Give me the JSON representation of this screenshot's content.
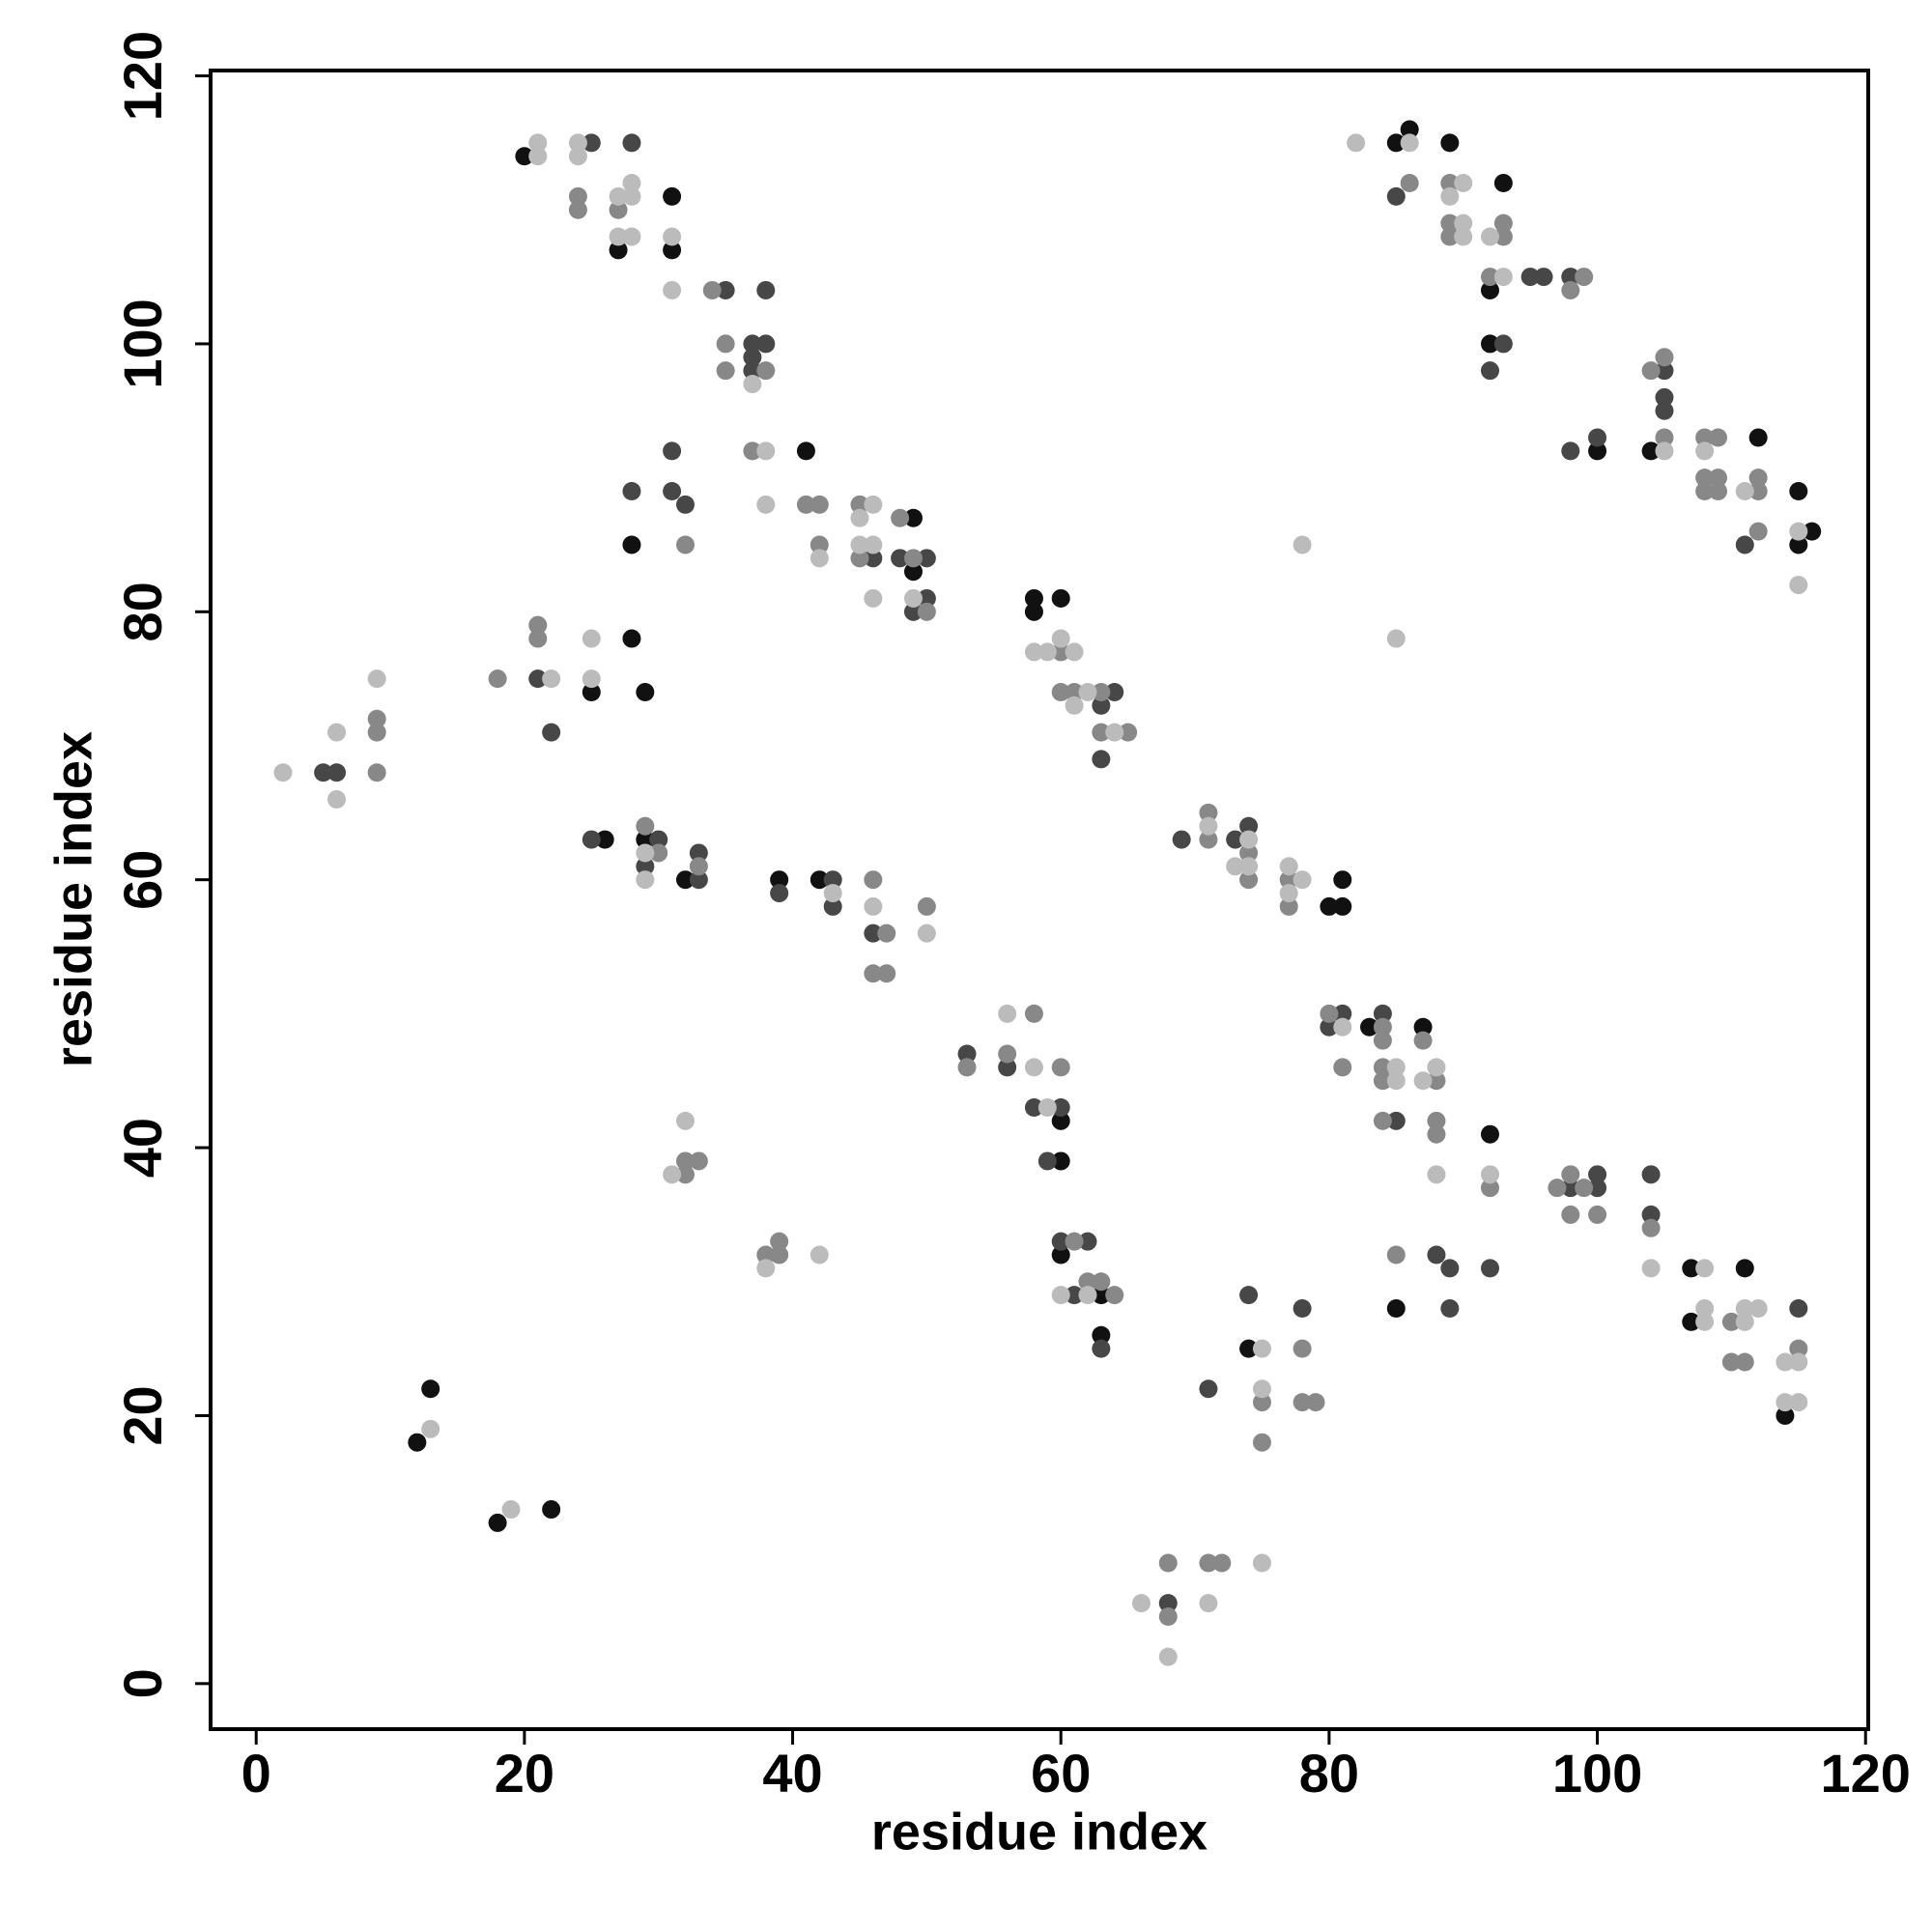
{
  "chart_data": {
    "type": "scatter",
    "xlabel": "residue index",
    "ylabel": "residue index",
    "xlim": [
      -3.4,
      120.2
    ],
    "ylim": [
      -3.4,
      120.4
    ],
    "xticks": [
      0,
      20,
      40,
      60,
      80,
      100,
      120
    ],
    "yticks": [
      0,
      20,
      40,
      60,
      80,
      100,
      120
    ],
    "grid": false,
    "series": [
      {
        "color": "#111111",
        "x": [
          20,
          31,
          27,
          31,
          41,
          28,
          49,
          49,
          28,
          29,
          25,
          26,
          29,
          32,
          39,
          42,
          12,
          13,
          18,
          22,
          60,
          60,
          58,
          58,
          60,
          60,
          63,
          63,
          74,
          80,
          81,
          81,
          83,
          87,
          85,
          92,
          107,
          107,
          111,
          114,
          85,
          86,
          89,
          93,
          92,
          92,
          100,
          104,
          112,
          115,
          116,
          115
        ],
        "y": [
          114,
          111,
          107,
          107,
          92,
          85,
          87,
          83,
          78,
          74,
          74,
          63,
          63,
          60,
          60,
          60,
          18,
          22,
          12,
          13,
          42,
          39,
          81,
          80,
          81,
          32,
          29,
          26,
          25,
          58,
          60,
          58,
          49,
          49,
          28,
          41,
          31,
          27,
          31,
          20,
          115,
          116,
          115,
          112,
          104,
          100,
          92,
          92,
          93,
          89,
          86,
          85
        ]
      },
      {
        "color": "#474747",
        "x": [
          25,
          28,
          35,
          38,
          37,
          38,
          37,
          37,
          48,
          46,
          50,
          50,
          49,
          31,
          28,
          31,
          32,
          21,
          22,
          5,
          6,
          25,
          30,
          29,
          33,
          33,
          39,
          43,
          43,
          46,
          53,
          56,
          58,
          60,
          59,
          64,
          63,
          63,
          60,
          62,
          61,
          63,
          68,
          71,
          74,
          78,
          69,
          73,
          74,
          81,
          80,
          84,
          85,
          88,
          89,
          89,
          92,
          98,
          100,
          100,
          104,
          104,
          115,
          85,
          95,
          96,
          98,
          93,
          92,
          98,
          100,
          105,
          105,
          105,
          111
        ],
        "y": [
          115,
          115,
          104,
          104,
          100,
          100,
          99,
          98,
          84,
          84,
          84,
          81,
          80,
          92,
          89,
          89,
          88,
          75,
          71,
          68,
          68,
          63,
          63,
          61,
          62,
          60,
          59,
          60,
          58,
          56,
          47,
          46,
          43,
          43,
          39,
          74,
          73,
          69,
          33,
          33,
          29,
          25,
          6,
          22,
          29,
          28,
          63,
          63,
          64,
          50,
          49,
          50,
          42,
          32,
          31,
          28,
          31,
          37,
          38,
          37,
          38,
          35,
          28,
          111,
          105,
          105,
          105,
          100,
          98,
          92,
          93,
          98,
          96,
          95,
          85
        ]
      },
      {
        "color": "#888888",
        "x": [
          24,
          24,
          27,
          34,
          35,
          35,
          38,
          37,
          41,
          42,
          42,
          45,
          48,
          45,
          49,
          50,
          32,
          21,
          21,
          18,
          9,
          9,
          9,
          29,
          30,
          33,
          46,
          47,
          46,
          47,
          50,
          32,
          33,
          32,
          38,
          39,
          39,
          53,
          56,
          58,
          60,
          60,
          60,
          61,
          63,
          63,
          65,
          61,
          62,
          63,
          64,
          68,
          68,
          71,
          72,
          75,
          75,
          78,
          78,
          79,
          71,
          71,
          74,
          74,
          77,
          77,
          80,
          81,
          84,
          84,
          87,
          84,
          84,
          88,
          84,
          88,
          88,
          85,
          92,
          97,
          98,
          99,
          98,
          100,
          104,
          110,
          110,
          111,
          115,
          86,
          89,
          89,
          89,
          93,
          93,
          92,
          99,
          98,
          105,
          104,
          105,
          108,
          109,
          108,
          109,
          108,
          109,
          112,
          112,
          112
        ],
        "y": [
          111,
          110,
          110,
          104,
          100,
          98,
          98,
          92,
          88,
          88,
          85,
          88,
          87,
          84,
          84,
          80,
          85,
          79,
          78,
          75,
          72,
          71,
          68,
          64,
          62,
          61,
          60,
          56,
          53,
          53,
          58,
          39,
          39,
          38,
          32,
          33,
          32,
          46,
          47,
          50,
          46,
          77,
          74,
          74,
          74,
          71,
          71,
          33,
          30,
          30,
          29,
          9,
          5,
          9,
          9,
          21,
          18,
          25,
          21,
          21,
          65,
          63,
          62,
          60,
          60,
          58,
          50,
          46,
          49,
          48,
          48,
          46,
          45,
          45,
          42,
          42,
          41,
          32,
          37,
          37,
          38,
          37,
          35,
          35,
          34,
          27,
          24,
          24,
          25,
          112,
          112,
          109,
          108,
          109,
          108,
          105,
          105,
          104,
          93,
          98,
          99,
          93,
          93,
          90,
          90,
          89,
          89,
          90,
          89,
          86
        ]
      },
      {
        "color": "#bbbbbb",
        "x": [
          21,
          21,
          24,
          24,
          27,
          28,
          28,
          27,
          28,
          31,
          31,
          37,
          38,
          38,
          42,
          46,
          45,
          45,
          46,
          46,
          49,
          25,
          22,
          25,
          9,
          6,
          6,
          2,
          29,
          29,
          43,
          46,
          50,
          32,
          31,
          38,
          42,
          13,
          19,
          56,
          58,
          59,
          58,
          59,
          60,
          61,
          61,
          62,
          64,
          60,
          62,
          66,
          68,
          71,
          75,
          75,
          75,
          71,
          74,
          73,
          74,
          77,
          78,
          77,
          78,
          81,
          85,
          85,
          87,
          88,
          88,
          92,
          104,
          108,
          108,
          108,
          111,
          112,
          111,
          114,
          115,
          114,
          115,
          82,
          86,
          90,
          89,
          90,
          90,
          92,
          93,
          105,
          108,
          111,
          115,
          115,
          85
        ],
        "y": [
          115,
          114,
          115,
          114,
          111,
          112,
          111,
          108,
          108,
          108,
          104,
          97,
          92,
          88,
          84,
          88,
          87,
          85,
          85,
          81,
          81,
          78,
          75,
          75,
          75,
          71,
          66,
          68,
          62,
          60,
          59,
          58,
          56,
          42,
          38,
          31,
          32,
          19,
          13,
          50,
          46,
          43,
          77,
          77,
          78,
          77,
          73,
          74,
          71,
          29,
          29,
          6,
          2,
          6,
          9,
          25,
          22,
          64,
          63,
          61,
          61,
          61,
          60,
          59,
          85,
          49,
          46,
          45,
          45,
          46,
          38,
          38,
          31,
          31,
          28,
          27,
          28,
          28,
          27,
          24,
          24,
          21,
          21,
          115,
          115,
          112,
          111,
          109,
          108,
          108,
          105,
          92,
          92,
          89,
          86,
          82,
          78
        ]
      }
    ]
  }
}
